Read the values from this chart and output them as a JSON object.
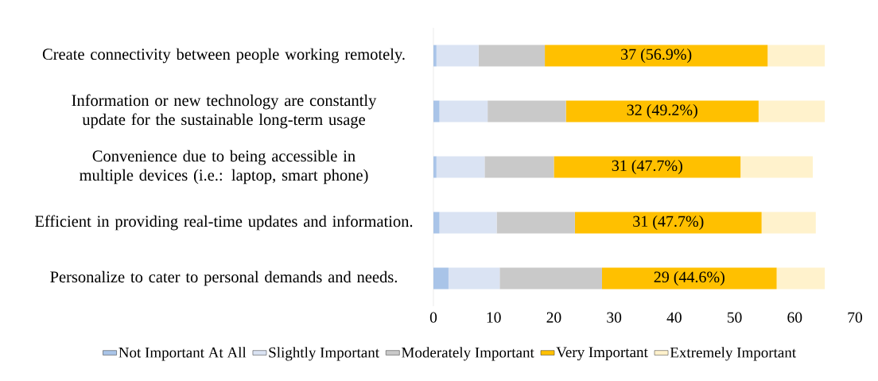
{
  "chart_data": {
    "type": "bar",
    "orientation": "horizontal",
    "stacked": true,
    "categories": [
      "Create connectivity between people working remotely.",
      "Information or new technology are constantly update for the sustainable long-term usage",
      "Convenience due to being accessible in multiple devices (i.e.: laptop, smart phone)",
      "Efficient in providing real-time updates and information.",
      "Personalize to cater to personal demands and needs."
    ],
    "series": [
      {
        "name": "Not Important At All",
        "color": "#a9c4e8",
        "values": [
          0.5,
          1,
          0.5,
          1,
          2.5
        ]
      },
      {
        "name": "Slightly Important",
        "color": "#dae3f3",
        "values": [
          7,
          8,
          8,
          9.5,
          8.5
        ]
      },
      {
        "name": "Moderately Important",
        "color": "#c9c9c9",
        "values": [
          11,
          13,
          11.5,
          13,
          17
        ]
      },
      {
        "name": "Very Important",
        "color": "#ffc000",
        "values": [
          37,
          32,
          31,
          31,
          29
        ],
        "value_labels": [
          "37 (56.9%)",
          "32 (49.2%)",
          "31 (47.7%)",
          "31 (47.7%)",
          "29 (44.6%)"
        ]
      },
      {
        "name": "Extremely Important",
        "color": "#fff2cc",
        "values": [
          9.5,
          11,
          12,
          9,
          8
        ]
      }
    ],
    "xlim": [
      0,
      70
    ],
    "xticks": [
      0,
      10,
      20,
      30,
      40,
      50,
      60,
      70
    ],
    "grid": false,
    "legend": "bottom"
  }
}
